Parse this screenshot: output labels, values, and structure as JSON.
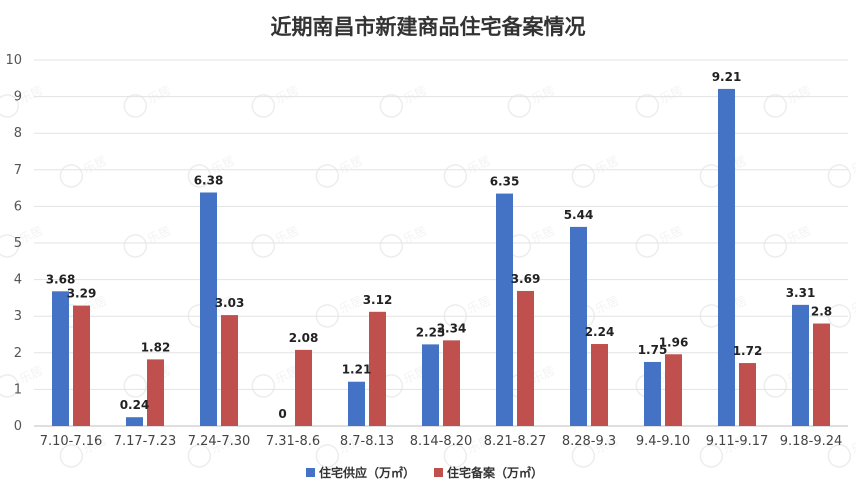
{
  "chart_data": {
    "type": "bar",
    "title": "近期南昌市新建商品住宅备案情况",
    "categories": [
      "7.10-7.16",
      "7.17-7.23",
      "7.24-7.30",
      "7.31-8.6",
      "8.7-8.13",
      "8.14-8.20",
      "8.21-8.27",
      "8.28-9.3",
      "9.4-9.10",
      "9.11-9.17",
      "9.18-9.24"
    ],
    "series": [
      {
        "name": "住宅供应（万㎡）",
        "color": "#4472c4",
        "values": [
          3.68,
          0.24,
          6.38,
          0,
          1.21,
          2.23,
          6.35,
          5.44,
          1.75,
          9.21,
          3.31
        ]
      },
      {
        "name": "住宅备案（万㎡）",
        "color": "#c0504d",
        "values": [
          3.29,
          1.82,
          3.03,
          2.08,
          3.12,
          2.34,
          3.69,
          2.24,
          1.96,
          1.72,
          2.8
        ]
      }
    ],
    "data_labels": [
      [
        "3.68",
        "0.24",
        "6.38",
        "0",
        "1.21",
        "2.23",
        "6.35",
        "5.44",
        "1.75",
        "9.21",
        "3.31"
      ],
      [
        "3.29",
        "1.82",
        "3.03",
        "2.08",
        "3.12",
        "2.34",
        "3.69",
        "2.24",
        "1.96",
        "1.72",
        "2.8"
      ]
    ],
    "y_ticks": [
      "0",
      "1",
      "2",
      "3",
      "4",
      "5",
      "6",
      "7",
      "8",
      "9",
      "10"
    ],
    "ylim": [
      0,
      10
    ],
    "grid": true,
    "legend_position": "bottom",
    "watermark": "乐居"
  }
}
